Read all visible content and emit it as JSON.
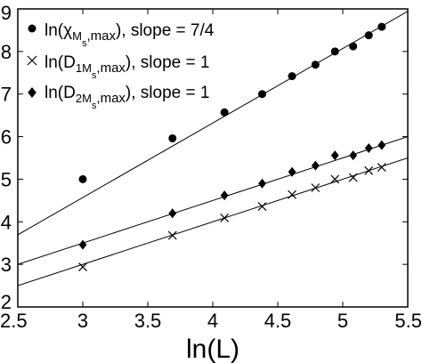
{
  "chart_data": {
    "type": "scatter",
    "xlabel": "ln(L)",
    "ylabel": "",
    "xlim": [
      2.5,
      5.5
    ],
    "ylim": [
      2,
      9
    ],
    "xticks": [
      "2.5",
      "3",
      "3.5",
      "4",
      "4.5",
      "5",
      "5.5"
    ],
    "yticks": [
      "2",
      "3",
      "4",
      "5",
      "6",
      "7",
      "8",
      "9"
    ],
    "grid": false,
    "legend_position": "top-left",
    "series": [
      {
        "name": "ln(χMs,max), slope = 7/4",
        "legend": {
          "pre": "ln(χ",
          "sub": "M",
          "subsub": "s",
          "post": ",max), slope = 7/4"
        },
        "marker": "circle",
        "x": [
          3.0,
          3.69,
          4.09,
          4.38,
          4.61,
          4.79,
          4.94,
          5.08,
          5.2,
          5.3
        ],
        "y": [
          5.0,
          5.96,
          6.57,
          7.0,
          7.42,
          7.69,
          8.0,
          8.12,
          8.38,
          8.58
        ],
        "fit": {
          "slope": 1.75,
          "intercept": -0.68
        }
      },
      {
        "name": "ln(D1Ms,max), slope = 1",
        "legend": {
          "pre": "ln(D",
          "sub": "1M",
          "subsub": "s",
          "post": ",max), slope = 1"
        },
        "marker": "cross",
        "x": [
          3.0,
          3.69,
          4.09,
          4.38,
          4.61,
          4.79,
          4.94,
          5.08,
          5.2,
          5.3
        ],
        "y": [
          2.94,
          3.68,
          4.09,
          4.36,
          4.64,
          4.8,
          5.0,
          5.04,
          5.2,
          5.28
        ],
        "fit": {
          "slope": 1.0,
          "intercept": 0.0
        }
      },
      {
        "name": "ln(D2Ms,max), slope = 1",
        "legend": {
          "pre": "ln(D",
          "sub": "2M",
          "subsub": "s",
          "post": ",max), slope = 1"
        },
        "marker": "diamond",
        "x": [
          3.0,
          3.69,
          4.09,
          4.38,
          4.61,
          4.79,
          4.94,
          5.08,
          5.2,
          5.3
        ],
        "y": [
          3.46,
          4.2,
          4.62,
          4.9,
          5.17,
          5.32,
          5.56,
          5.56,
          5.73,
          5.8
        ],
        "fit": {
          "slope": 1.0,
          "intercept": 0.5
        }
      }
    ]
  }
}
